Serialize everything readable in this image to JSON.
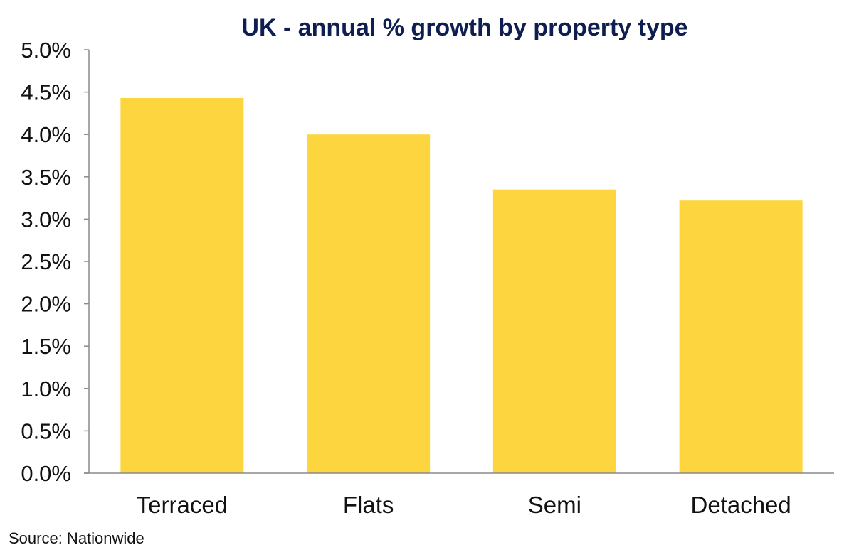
{
  "chart_data": {
    "type": "bar",
    "title": "UK - annual % growth by property type",
    "categories": [
      "Terraced",
      "Flats",
      "Semi",
      "Detached"
    ],
    "values": [
      4.43,
      4.0,
      3.35,
      3.22
    ],
    "ylim": [
      0,
      5
    ],
    "yticks": [
      0,
      0.5,
      1,
      1.5,
      2,
      2.5,
      3,
      3.5,
      4,
      4.5,
      5
    ],
    "ytick_labels": [
      "0.0%",
      "0.5%",
      "1.0%",
      "1.5%",
      "2.0%",
      "2.5%",
      "3.0%",
      "3.5%",
      "4.0%",
      "4.5%",
      "5.0%"
    ],
    "xlabel": "",
    "ylabel": "",
    "grid": false,
    "legend": "none",
    "bar_color": "#fdd53f",
    "title_color": "#0f1e50",
    "axis_color": "#8a8a8a"
  },
  "source": "Source: Nationwide"
}
